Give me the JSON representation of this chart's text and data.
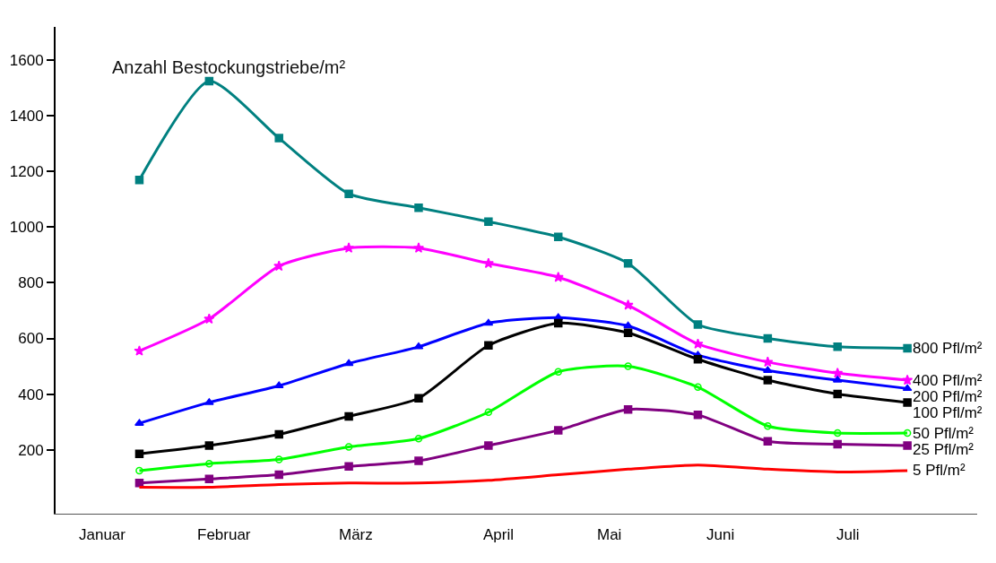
{
  "chart_data": {
    "type": "line",
    "title": "Anzahl Bestockungstriebe/m²",
    "categories": [
      null,
      null,
      null,
      null,
      null,
      null,
      null,
      null,
      null,
      null,
      null,
      null
    ],
    "annotations": [
      "Januar",
      "Februar",
      "März",
      "April",
      "Mai",
      "Juni",
      "Juli"
    ],
    "tick_labels": "y",
    "ylim": [
      -30,
      1720
    ],
    "yticks": [
      200,
      400,
      600,
      800,
      1000,
      1200,
      1400,
      1600
    ],
    "grid": false,
    "legend": false,
    "line_style": "solid",
    "series": [
      {
        "name": "800 Pfl/m²",
        "color": "#008080",
        "marker": "square",
        "values": [
          1170,
          1525,
          1320,
          1120,
          1070,
          1020,
          965,
          870,
          650,
          600,
          570,
          565
        ]
      },
      {
        "name": "400 Pfl/m²",
        "color": "#ff00ff",
        "marker": "star",
        "values": [
          555,
          670,
          860,
          925,
          925,
          870,
          820,
          720,
          580,
          515,
          475,
          450
        ]
      },
      {
        "name": "200 Pfl/m²",
        "color": "#0000ff",
        "marker": "triangle",
        "values": [
          295,
          370,
          430,
          510,
          570,
          655,
          675,
          645,
          540,
          485,
          450,
          420
        ]
      },
      {
        "name": "100 Pfl/m²",
        "color": "#000000",
        "marker": "square",
        "values": [
          185,
          215,
          255,
          320,
          385,
          575,
          655,
          620,
          525,
          450,
          400,
          370
        ]
      },
      {
        "name": "50 Pfl/m²",
        "color": "#00ff00",
        "marker": "circle",
        "values": [
          125,
          150,
          165,
          210,
          240,
          335,
          480,
          500,
          425,
          285,
          260,
          260
        ]
      },
      {
        "name": "25 Pfl/m²",
        "color": "#800080",
        "marker": "square",
        "values": [
          80,
          95,
          110,
          140,
          160,
          215,
          270,
          345,
          325,
          230,
          220,
          215
        ]
      },
      {
        "name": "5 Pfl/m²",
        "color": "#ff0000",
        "marker": "none",
        "values": [
          65,
          65,
          75,
          80,
          80,
          90,
          110,
          130,
          145,
          130,
          120,
          125
        ]
      }
    ]
  }
}
